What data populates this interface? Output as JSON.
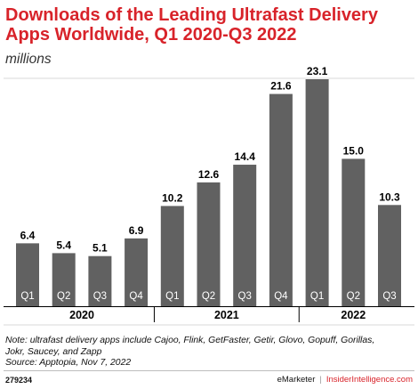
{
  "title": "Downloads of the Leading Ultrafast Delivery Apps Worldwide, Q1 2020-Q3 2022",
  "subtitle": "millions",
  "chart_data": {
    "type": "bar",
    "categories": [
      "Q1",
      "Q2",
      "Q3",
      "Q4",
      "Q1",
      "Q2",
      "Q3",
      "Q4",
      "Q1",
      "Q2",
      "Q3"
    ],
    "values": [
      6.4,
      5.4,
      5.1,
      6.9,
      10.2,
      12.6,
      14.4,
      21.6,
      23.1,
      15.0,
      10.3
    ],
    "value_labels": [
      "6.4",
      "5.4",
      "5.1",
      "6.9",
      "10.2",
      "12.6",
      "14.4",
      "21.6",
      "23.1",
      "15.0",
      "10.3"
    ],
    "groups": [
      {
        "label": "2020",
        "count": 4
      },
      {
        "label": "2021",
        "count": 4
      },
      {
        "label": "2022",
        "count": 3
      }
    ],
    "ylim": [
      0,
      23.1
    ],
    "grid": false,
    "bar_color": "#616161",
    "grid_color": "#d9d9d9"
  },
  "footnote": {
    "line1": "Note: ultrafast delivery apps include Cajoo, Flink, GetFaster, Getir, Glovo, Gopuff, Gorillas,",
    "line2": "Jokr, Saucey, and Zapp",
    "line3": "Source: Apptopia, Nov 7, 2022"
  },
  "footer": {
    "code": "279234",
    "brand1": "eMarketer",
    "separator": "|",
    "brand2": "InsiderIntelligence.com"
  }
}
